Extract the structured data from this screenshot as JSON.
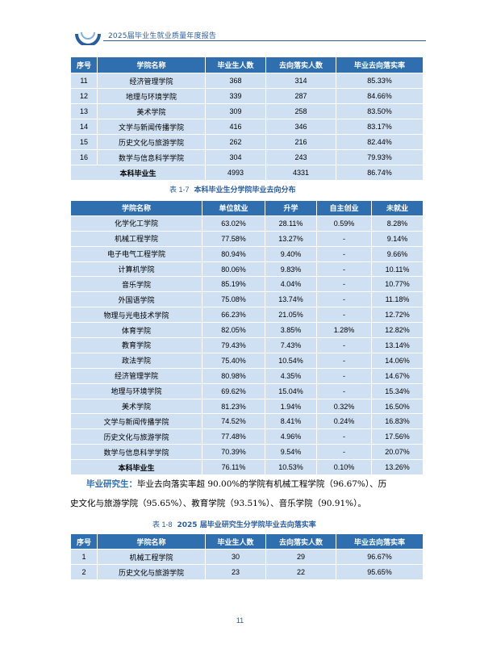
{
  "header": {
    "title": "2025届毕业生就业质量年度报告"
  },
  "table1": {
    "columns": [
      "序号",
      "学院名称",
      "毕业生人数",
      "去向落实人数",
      "毕业去向落实率"
    ],
    "rows": [
      [
        "11",
        "经济管理学院",
        "368",
        "314",
        "85.33%"
      ],
      [
        "12",
        "地理与环境学院",
        "339",
        "287",
        "84.66%"
      ],
      [
        "13",
        "美术学院",
        "309",
        "258",
        "83.50%"
      ],
      [
        "14",
        "文学与新闻传播学院",
        "416",
        "346",
        "83.17%"
      ],
      [
        "15",
        "历史文化与旅游学院",
        "262",
        "216",
        "82.44%"
      ],
      [
        "16",
        "数学与信息科学学院",
        "304",
        "243",
        "79.93%"
      ]
    ],
    "total": {
      "label": "本科毕业生",
      "graduates": "4993",
      "placed": "4331",
      "rate": "86.74%"
    }
  },
  "caption2": {
    "number": "表 1-7",
    "title": "本科毕业生分学院毕业去向分布"
  },
  "table2": {
    "columns": [
      "学院名称",
      "单位就业",
      "升学",
      "自主创业",
      "未就业"
    ],
    "rows": [
      [
        "化学化工学院",
        "63.02%",
        "28.11%",
        "0.59%",
        "8.28%"
      ],
      [
        "机械工程学院",
        "77.58%",
        "13.27%",
        "-",
        "9.14%"
      ],
      [
        "电子电气工程学院",
        "80.94%",
        "9.40%",
        "-",
        "9.66%"
      ],
      [
        "计算机学院",
        "80.06%",
        "9.83%",
        "-",
        "10.11%"
      ],
      [
        "音乐学院",
        "85.19%",
        "4.04%",
        "-",
        "10.77%"
      ],
      [
        "外国语学院",
        "75.08%",
        "13.74%",
        "-",
        "11.18%"
      ],
      [
        "物理与光电技术学院",
        "66.23%",
        "21.05%",
        "-",
        "12.72%"
      ],
      [
        "体育学院",
        "82.05%",
        "3.85%",
        "1.28%",
        "12.82%"
      ],
      [
        "教育学院",
        "79.43%",
        "7.43%",
        "-",
        "13.14%"
      ],
      [
        "政法学院",
        "75.40%",
        "10.54%",
        "-",
        "14.06%"
      ],
      [
        "经济管理学院",
        "80.98%",
        "4.35%",
        "-",
        "14.67%"
      ],
      [
        "地理与环境学院",
        "69.62%",
        "15.04%",
        "-",
        "15.34%"
      ],
      [
        "美术学院",
        "81.23%",
        "1.94%",
        "0.32%",
        "16.50%"
      ],
      [
        "文学与新闻传播学院",
        "74.52%",
        "8.41%",
        "0.24%",
        "16.83%"
      ],
      [
        "历史文化与旅游学院",
        "77.48%",
        "4.96%",
        "-",
        "17.56%"
      ],
      [
        "数学与信息科学学院",
        "70.39%",
        "9.54%",
        "-",
        "20.07%"
      ]
    ],
    "total": [
      "本科毕业生",
      "76.11%",
      "10.53%",
      "0.10%",
      "13.26%"
    ]
  },
  "paragraph": {
    "lead": "毕业研究生：",
    "line1": "毕业去向落实率超 90.00%的学院有机械工程学院（96.67%）、历",
    "line2": "史文化与旅游学院（95.65%）、教育学院（93.51%）、音乐学院（90.91%）。"
  },
  "caption3": {
    "number": "表 1-8",
    "title": "2025 届毕业研究生分学院毕业去向落实率"
  },
  "table3": {
    "columns": [
      "序号",
      "学院名称",
      "毕业生人数",
      "去向落实人数",
      "毕业去向落实率"
    ],
    "rows": [
      [
        "1",
        "机械工程学院",
        "30",
        "29",
        "96.67%"
      ],
      [
        "2",
        "历史文化与旅游学院",
        "23",
        "22",
        "95.65%"
      ]
    ]
  },
  "page_number": "11",
  "colors": {
    "header_blue": "#2f6fb0",
    "cell_blue": "#cfe0f3",
    "text_blue": "#2a5d9f"
  }
}
